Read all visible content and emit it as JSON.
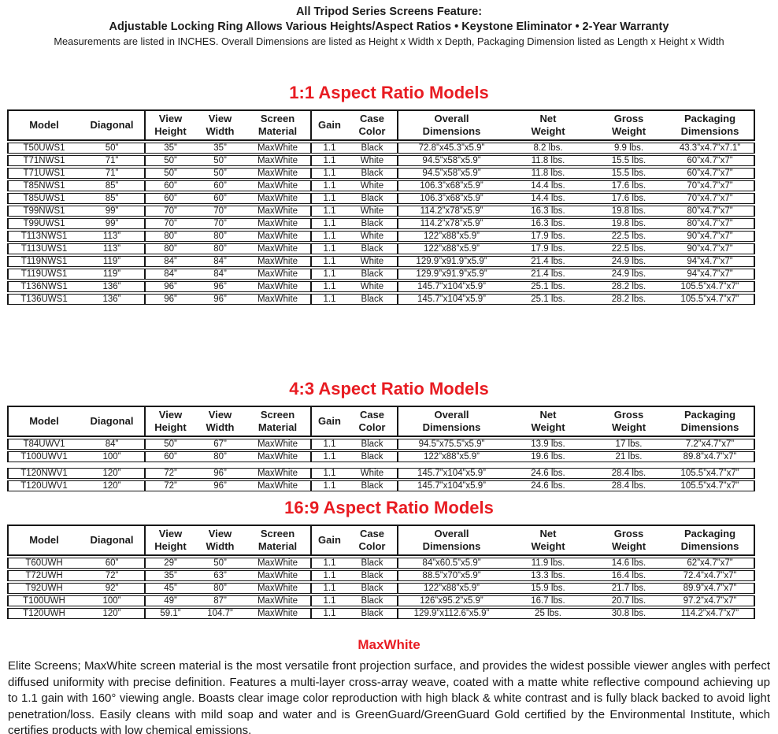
{
  "accent_color": "#e81c22",
  "header": {
    "line1": "All Tripod Series Screens Feature:",
    "line2": "Adjustable Locking Ring Allows Various Heights/Aspect Ratios  • Keystone Eliminator • 2-Year Warranty",
    "line3": "Measurements are listed in INCHES. Overall Dimensions are listed as Height x Width x Depth, Packaging Dimension listed as Length x Height x Width"
  },
  "columns": [
    "Model",
    "Diagonal",
    "View\nHeight",
    "View\nWidth",
    "Screen\nMaterial",
    "Gain",
    "Case\nColor",
    "Overall\nDimensions",
    "Net\nWeight",
    "Gross\nWeight",
    "Packaging\nDimensions"
  ],
  "tables": [
    {
      "title": "1:1 Aspect Ratio Models",
      "group_breaks": [],
      "rows": [
        [
          "T50UWS1",
          "50”",
          "35”",
          "35”",
          "MaxWhite",
          "1.1",
          "Black",
          "72.8”x45.3”x5.9”",
          "8.2 lbs.",
          "9.9 lbs.",
          "43.3”x4.7”x7.1”"
        ],
        [
          "T71NWS1",
          "71”",
          "50”",
          "50”",
          "MaxWhite",
          "1.1",
          "White",
          "94.5”x58”x5.9”",
          "11.8 lbs.",
          "15.5 lbs.",
          "60”x4.7”x7”"
        ],
        [
          "T71UWS1",
          "71”",
          "50”",
          "50”",
          "MaxWhite",
          "1.1",
          "Black",
          "94.5”x58”x5.9”",
          "11.8 lbs.",
          "15.5 lbs.",
          "60”x4.7”x7”"
        ],
        [
          "T85NWS1",
          "85”",
          "60”",
          "60”",
          "MaxWhite",
          "1.1",
          "White",
          "106.3”x68”x5.9”",
          "14.4 lbs.",
          "17.6 lbs.",
          "70”x4.7”x7”"
        ],
        [
          "T85UWS1",
          "85”",
          "60”",
          "60”",
          "MaxWhite",
          "1.1",
          "Black",
          "106.3”x68”x5.9”",
          "14.4 lbs.",
          "17.6 lbs.",
          "70”x4.7”x7”"
        ],
        [
          "T99NWS1",
          "99”",
          "70”",
          "70”",
          "MaxWhite",
          "1.1",
          "White",
          "114.2”x78”x5.9”",
          "16.3 lbs.",
          "19.8 lbs.",
          "80”x4.7”x7”"
        ],
        [
          "T99UWS1",
          "99”",
          "70”",
          "70”",
          "MaxWhite",
          "1.1",
          "Black",
          "114.2”x78”x5.9”",
          "16.3 lbs.",
          "19.8 lbs.",
          "80”x4.7”x7”"
        ],
        [
          "T113NWS1",
          "113”",
          "80”",
          "80”",
          "MaxWhite",
          "1.1",
          "White",
          "122”x88”x5.9”",
          "17.9 lbs.",
          "22.5 lbs.",
          "90”x4.7”x7”"
        ],
        [
          "T113UWS1",
          "113”",
          "80”",
          "80”",
          "MaxWhite",
          "1.1",
          "Black",
          "122”x88”x5.9”",
          "17.9 lbs.",
          "22.5 lbs.",
          "90”x4.7”x7”"
        ],
        [
          "T119NWS1",
          "119”",
          "84”",
          "84”",
          "MaxWhite",
          "1.1",
          "White",
          "129.9”x91.9”x5.9”",
          "21.4 lbs.",
          "24.9 lbs.",
          "94”x4.7”x7”"
        ],
        [
          "T119UWS1",
          "119”",
          "84”",
          "84”",
          "MaxWhite",
          "1.1",
          "Black",
          "129.9”x91.9”x5.9”",
          "21.4 lbs.",
          "24.9 lbs.",
          "94”x4.7”x7”"
        ],
        [
          "T136NWS1",
          "136”",
          "96”",
          "96”",
          "MaxWhite",
          "1.1",
          "White",
          "145.7”x104”x5.9”",
          "25.1 lbs.",
          "28.2 lbs.",
          "105.5”x4.7”x7”"
        ],
        [
          "T136UWS1",
          "136”",
          "96”",
          "96”",
          "MaxWhite",
          "1.1",
          "Black",
          "145.7”x104”x5.9”",
          "25.1 lbs.",
          "28.2 lbs.",
          "105.5”x4.7”x7”"
        ]
      ]
    },
    {
      "title": "4:3 Aspect Ratio Models",
      "group_breaks": [
        2
      ],
      "rows": [
        [
          "T84UWV1",
          "84”",
          "50”",
          "67”",
          "MaxWhite",
          "1.1",
          "Black",
          "94.5”x75.5”x5.9”",
          "13.9 lbs.",
          "17 lbs.",
          "7.2”x4.7”x7”"
        ],
        [
          "T100UWV1",
          "100”",
          "60”",
          "80”",
          "MaxWhite",
          "1.1",
          "Black",
          "122”x88”x5.9”",
          "19.6 lbs.",
          "21 lbs.",
          "89.8”x4.7”x7”"
        ],
        [
          "T120NWV1",
          "120”",
          "72”",
          "96”",
          "MaxWhite",
          "1.1",
          "White",
          "145.7”x104”x5.9”",
          "24.6 lbs.",
          "28.4 lbs.",
          "105.5”x4.7”x7”"
        ],
        [
          "T120UWV1",
          "120”",
          "72”",
          "96”",
          "MaxWhite",
          "1.1",
          "Black",
          "145.7”x104”x5.9”",
          "24.6 lbs.",
          "28.4 lbs.",
          "105.5”x4.7”x7”"
        ]
      ]
    },
    {
      "title": "16:9 Aspect Ratio Models",
      "group_breaks": [],
      "rows": [
        [
          "T60UWH",
          "60”",
          "29”",
          "50”",
          "MaxWhite",
          "1.1",
          "Black",
          "84”x60.5”x5.9”",
          "11.9 lbs.",
          "14.6 lbs.",
          "62”x4.7”x7”"
        ],
        [
          "T72UWH",
          "72”",
          "35”",
          "63”",
          "MaxWhite",
          "1.1",
          "Black",
          "88.5”x70”x5.9”",
          "13.3 lbs.",
          "16.4 lbs.",
          "72.4”x4.7”x7”"
        ],
        [
          "T92UWH",
          "92”",
          "45”",
          "80”",
          "MaxWhite",
          "1.1",
          "Black",
          "122”x88”x5.9”",
          "15.9 lbs.",
          "21.7 lbs.",
          "89.9”x4.7”x7”"
        ],
        [
          "T100UWH",
          "100”",
          "49”",
          "87”",
          "MaxWhite",
          "1.1",
          "Black",
          "126”x95.2”x5.9”",
          "16.7 lbs.",
          "20.7 lbs.",
          "97.2”x4.7”x7”"
        ],
        [
          "T120UWH",
          "120”",
          "59.1”",
          "104.7”",
          "MaxWhite",
          "1.1",
          "Black",
          "129.9”x112.6”x5.9”",
          "25 lbs.",
          "30.8 lbs.",
          "114.2”x4.7”x7”"
        ]
      ]
    }
  ],
  "footer": {
    "title": "MaxWhite",
    "body": "Elite Screens; MaxWhite screen material is the most versatile front projection surface, and provides the widest possible viewer angles with perfect diffused uniformity with precise definition. Features a multi-layer cross-array weave, coated with a matte white reflective compound achieving up to 1.1 gain with 160° viewing angle.  Boasts clear image color reproduction with high black & white contrast and is fully black backed to avoid light penetration/loss. Easily cleans with mild soap and water and is GreenGuard/GreenGuard Gold certified by the Environmental Institute, which certifies products with low chemical emissions."
  }
}
